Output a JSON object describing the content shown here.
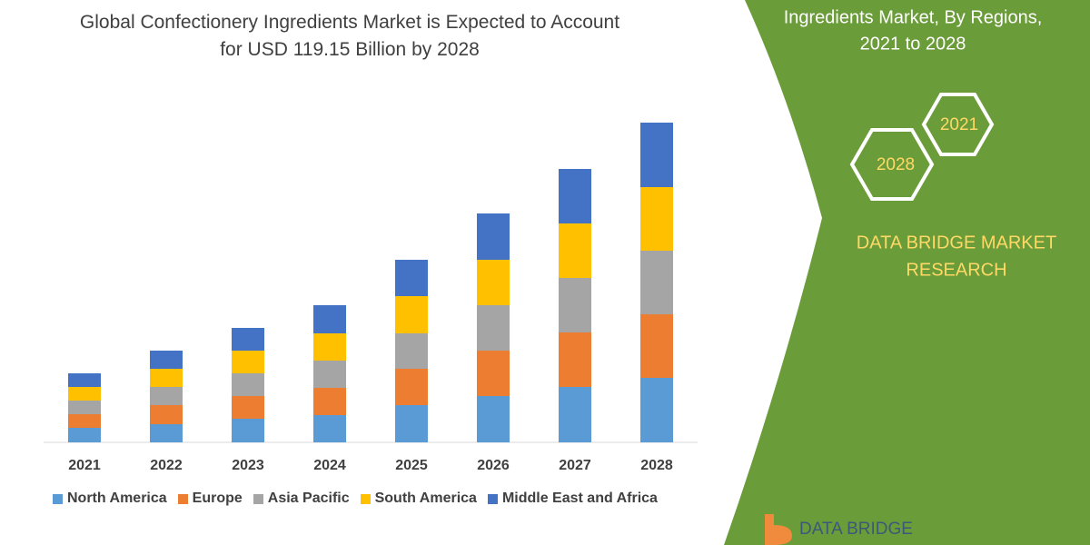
{
  "chart_data": {
    "type": "stacked-bar",
    "title": "Global Confectionery Ingredients Market is Expected to Account for USD 119.15 Billion by 2028",
    "categories": [
      "2021",
      "2022",
      "2023",
      "2024",
      "2025",
      "2026",
      "2027",
      "2028"
    ],
    "series": [
      {
        "name": "North America",
        "color": "#5b9bd5",
        "values": [
          16,
          20,
          26,
          30,
          41,
          51,
          61,
          71
        ]
      },
      {
        "name": "Europe",
        "color": "#ed7d31",
        "values": [
          15,
          21,
          25,
          30,
          40,
          50,
          60,
          70
        ]
      },
      {
        "name": "Asia Pacific",
        "color": "#a5a5a5",
        "values": [
          15,
          20,
          25,
          30,
          39,
          50,
          60,
          70
        ]
      },
      {
        "name": "South America",
        "color": "#ffc000",
        "values": [
          15,
          20,
          25,
          30,
          41,
          50,
          60,
          70
        ]
      },
      {
        "name": "Middle East and Africa",
        "color": "#4472c4",
        "values": [
          15,
          20,
          25,
          31,
          40,
          51,
          60,
          71
        ]
      }
    ]
  },
  "side_panel": {
    "heading_lines": [
      "Ingredients Market, By Regions,",
      "2021 to 2028"
    ],
    "hexagons": [
      "2021",
      "2028"
    ],
    "brand_lines": [
      "DATA BRIDGE MARKET",
      "RESEARCH"
    ],
    "logo": "DATA BRIDGE"
  }
}
